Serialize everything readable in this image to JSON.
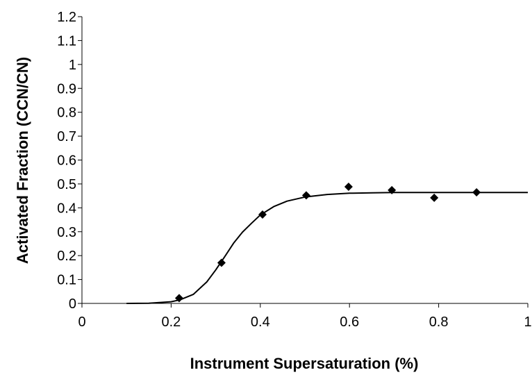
{
  "chart_data": {
    "type": "scatter",
    "title": "",
    "xlabel": "Instrument Supersaturation (%)",
    "ylabel": "Activated Fraction (CCN/CN)",
    "xlim": [
      0,
      1
    ],
    "ylim": [
      0,
      1.2
    ],
    "x_ticks": [
      "0",
      "0.2",
      "0.4",
      "0.6",
      "0.8",
      "1"
    ],
    "y_ticks": [
      "0",
      "0.1",
      "0.2",
      "0.3",
      "0.4",
      "0.5",
      "0.6",
      "0.7",
      "0.8",
      "0.9",
      "1",
      "1.1",
      "1.2"
    ],
    "grid": false,
    "legend": "none",
    "series": [
      {
        "kind": "points",
        "marker": "diamond",
        "color": "#000000",
        "x": [
          0.218,
          0.313,
          0.405,
          0.503,
          0.598,
          0.695,
          0.79,
          0.885
        ],
        "y": [
          0.022,
          0.17,
          0.372,
          0.452,
          0.488,
          0.474,
          0.442,
          0.465
        ]
      },
      {
        "kind": "fit-line",
        "color": "#000000",
        "x": [
          0.1,
          0.15,
          0.2,
          0.22,
          0.25,
          0.28,
          0.3,
          0.32,
          0.34,
          0.36,
          0.38,
          0.4,
          0.43,
          0.46,
          0.5,
          0.55,
          0.6,
          0.65,
          0.7,
          0.8,
          0.9,
          1.0
        ],
        "y": [
          0.0,
          0.001,
          0.007,
          0.015,
          0.038,
          0.09,
          0.14,
          0.195,
          0.252,
          0.298,
          0.335,
          0.37,
          0.405,
          0.428,
          0.445,
          0.456,
          0.461,
          0.463,
          0.464,
          0.464,
          0.464,
          0.464
        ]
      }
    ]
  }
}
